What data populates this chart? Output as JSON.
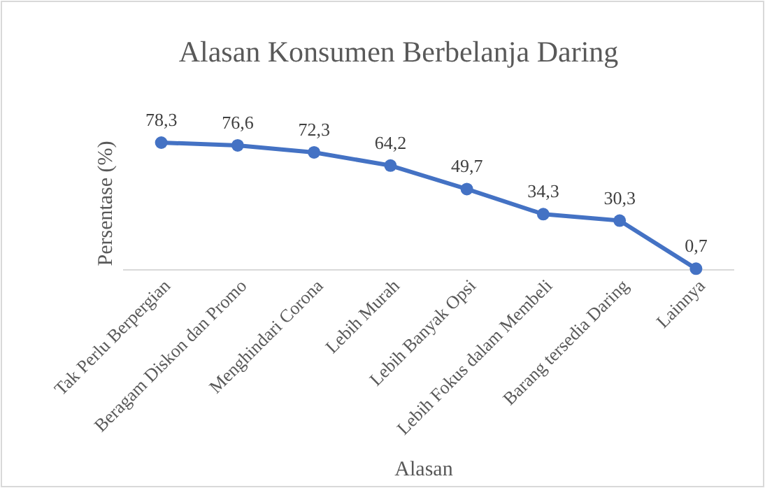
{
  "chart_data": {
    "type": "line",
    "title": "Alasan Konsumen Berbelanja Daring",
    "xlabel": "Alasan",
    "ylabel": "Persentase (%)",
    "categories": [
      "Tak Perlu Berpergian",
      "Beragam Diskon dan Promo",
      "Menghindari Corona",
      "Lebih Murah",
      "Lebih Banyak Opsi",
      "Lebih Fokus dalam Membeli",
      "Barang tersedia Daring",
      "Lainnya"
    ],
    "series": [
      {
        "color": "#4472c4",
        "values": [
          78.3,
          76.6,
          72.3,
          64.2,
          49.7,
          34.3,
          30.3,
          0.7
        ],
        "value_labels": [
          "78,3",
          "76,6",
          "72,3",
          "64,2",
          "49,7",
          "34,3",
          "30,3",
          "0,7"
        ]
      }
    ],
    "tick_labels": "x",
    "marker": "circle",
    "line_style": "solid"
  }
}
